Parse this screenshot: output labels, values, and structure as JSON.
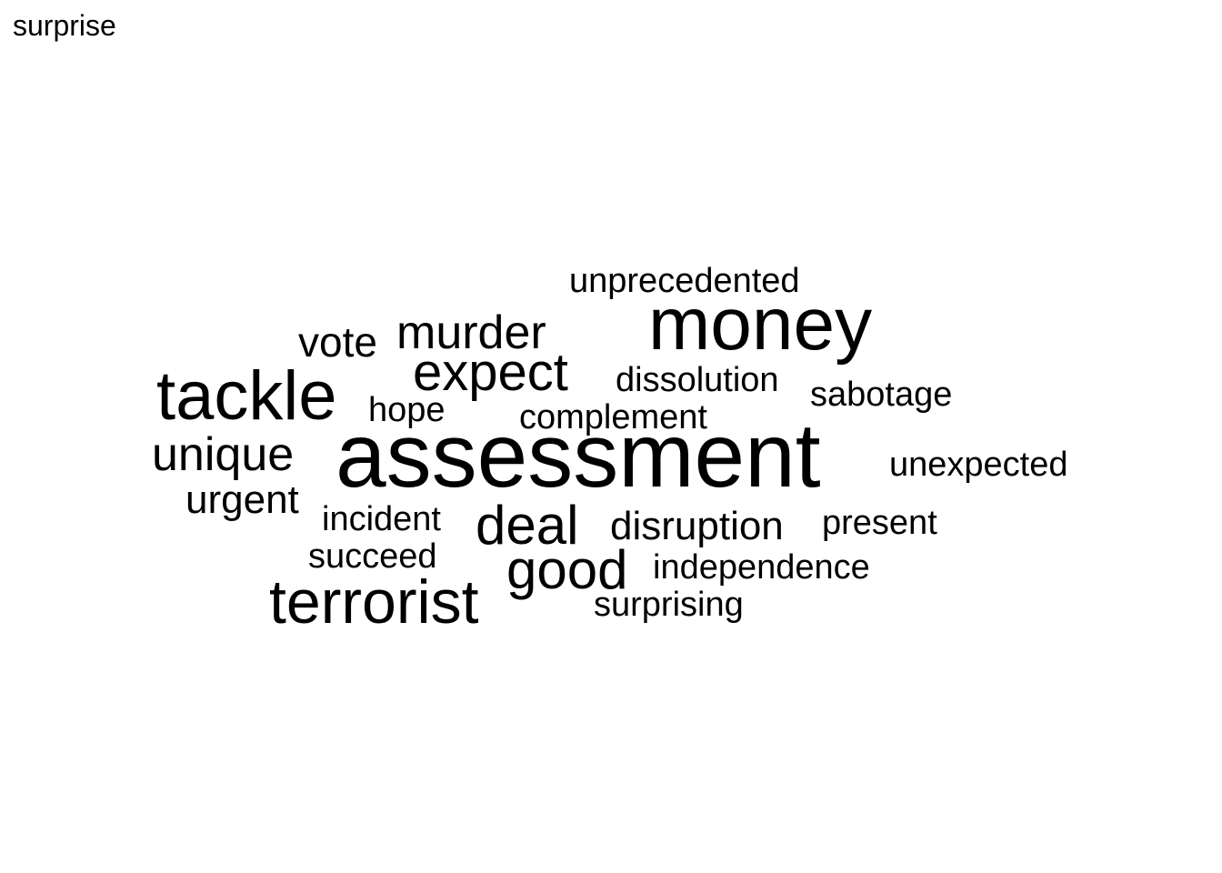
{
  "title": "surprise",
  "cloud": {
    "text_color": "#000000",
    "background": "#ffffff",
    "words": [
      {
        "text": "assessment",
        "weight": 10
      },
      {
        "text": "money",
        "weight": 8
      },
      {
        "text": "tackle",
        "weight": 7
      },
      {
        "text": "terrorist",
        "weight": 6
      },
      {
        "text": "expect",
        "weight": 5
      },
      {
        "text": "good",
        "weight": 5
      },
      {
        "text": "deal",
        "weight": 5
      },
      {
        "text": "murder",
        "weight": 4
      },
      {
        "text": "unique",
        "weight": 4
      },
      {
        "text": "vote",
        "weight": 3
      },
      {
        "text": "urgent",
        "weight": 3
      },
      {
        "text": "disruption",
        "weight": 3
      },
      {
        "text": "unprecedented",
        "weight": 2
      },
      {
        "text": "dissolution",
        "weight": 2
      },
      {
        "text": "sabotage",
        "weight": 2
      },
      {
        "text": "hope",
        "weight": 2
      },
      {
        "text": "complement",
        "weight": 2
      },
      {
        "text": "unexpected",
        "weight": 2
      },
      {
        "text": "incident",
        "weight": 2
      },
      {
        "text": "present",
        "weight": 2
      },
      {
        "text": "succeed",
        "weight": 2
      },
      {
        "text": "independence",
        "weight": 2
      },
      {
        "text": "surprising",
        "weight": 2
      }
    ]
  }
}
